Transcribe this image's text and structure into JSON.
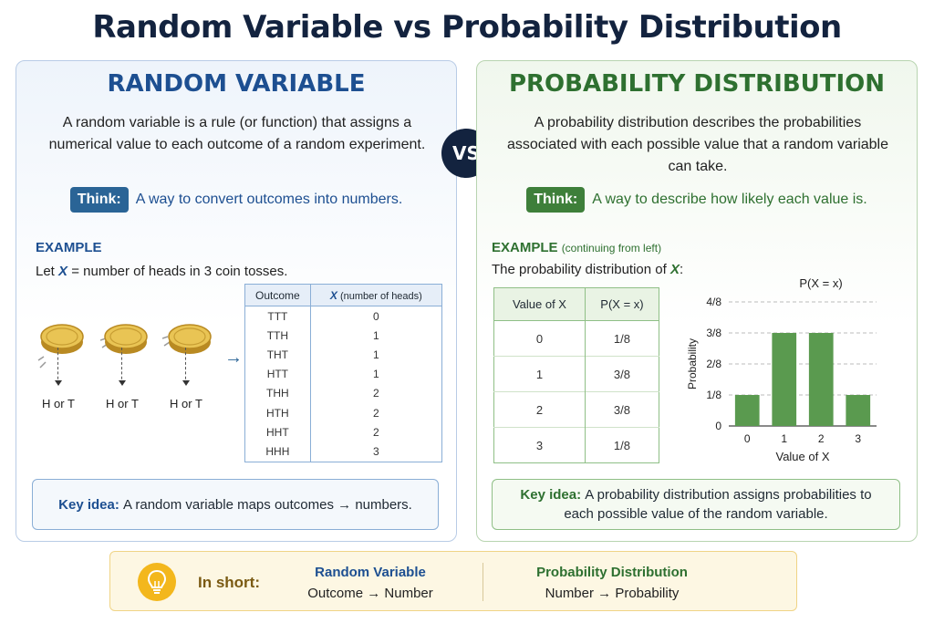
{
  "title": "Random Variable vs Probability Distribution",
  "vs_label": "VS",
  "left": {
    "heading": "RANDOM VARIABLE",
    "definition": "A random variable is a rule (or function) that assigns a numerical value to each outcome of a random experiment.",
    "think_badge": "Think:",
    "think_text": "A way to convert outcomes into numbers.",
    "example_label": "EXAMPLE",
    "example_let": "Let",
    "example_var": "X",
    "example_rest": " = number of heads in 3 coin tosses.",
    "coin_label": "H or T",
    "arrow_symbol": "→",
    "table": {
      "col_outcome": "Outcome",
      "col_x_var": "X",
      "col_x_rest": " (number of heads)",
      "rows": [
        {
          "outcome": "TTT",
          "x": "0"
        },
        {
          "outcome": "TTH",
          "x": "1"
        },
        {
          "outcome": "THT",
          "x": "1"
        },
        {
          "outcome": "HTT",
          "x": "1"
        },
        {
          "outcome": "THH",
          "x": "2"
        },
        {
          "outcome": "HTH",
          "x": "2"
        },
        {
          "outcome": "HHT",
          "x": "2"
        },
        {
          "outcome": "HHH",
          "x": "3"
        }
      ]
    },
    "key_label": "Key idea:",
    "key_text": "A random variable maps outcomes → numbers."
  },
  "right": {
    "heading": "PROBABILITY DISTRIBUTION",
    "definition": "A probability distribution describes the probabilities associated with each possible value that a random variable can take.",
    "think_badge": "Think:",
    "think_text": "A way to describe how likely each value is.",
    "example_label": "EXAMPLE",
    "example_sub": "(continuing from left)",
    "example_text": "The probability distribution of",
    "example_var": "X",
    "example_colon": ":",
    "table": {
      "col_value": "Value of X",
      "col_prob": "P(X = x)",
      "rows": [
        {
          "value": "0",
          "prob": "1/8"
        },
        {
          "value": "1",
          "prob": "3/8"
        },
        {
          "value": "2",
          "prob": "3/8"
        },
        {
          "value": "3",
          "prob": "1/8"
        }
      ]
    },
    "key_label": "Key idea:",
    "key_text": "A probability distribution assigns probabilities to each possible value of the random variable."
  },
  "chart_data": {
    "type": "bar",
    "title": "P(X = x)",
    "xlabel": "Value of X",
    "ylabel": "Probability",
    "categories": [
      "0",
      "1",
      "2",
      "3"
    ],
    "values": [
      0.125,
      0.375,
      0.375,
      0.125
    ],
    "ylim": [
      0,
      0.5
    ],
    "yticks": [
      0,
      0.125,
      0.25,
      0.375,
      0.5
    ],
    "ytick_labels": [
      "0",
      "1/8",
      "2/8",
      "3/8",
      "4/8"
    ],
    "grid": true,
    "bar_color": "#5a9a4f"
  },
  "summary": {
    "in_short": "In short:",
    "col1_heading": "Random Variable",
    "col1_text": "Outcome → Number",
    "col2_heading": "Probability Distribution",
    "col2_text": "Number → Probability"
  },
  "colors": {
    "navy": "#13233f",
    "blue": "#1d4f91",
    "green": "#2e7030",
    "gold": "#f3b71c"
  }
}
